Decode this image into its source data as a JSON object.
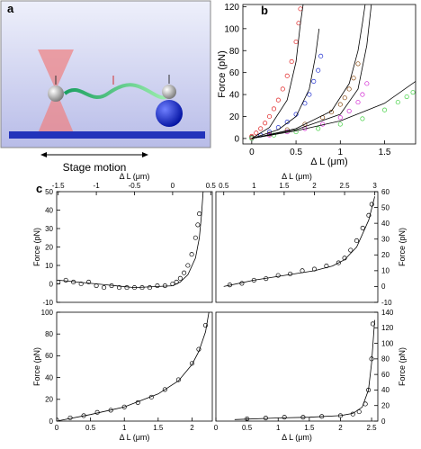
{
  "diagram": {
    "label": "a",
    "caption": "Stage motion"
  },
  "chart_data": [
    {
      "type": "scatter",
      "panel_label": "b",
      "x_label": "Δ L (μm)",
      "y_label": "Force (pN)",
      "x_axis": "bottom",
      "y_axis": "left",
      "xlim": [
        -0.1,
        1.85
      ],
      "ylim": [
        -5,
        122
      ],
      "xticks": [
        0,
        0.5,
        1,
        1.5
      ],
      "yticks": [
        0,
        20,
        40,
        60,
        80,
        100,
        120
      ],
      "series": [
        {
          "color": "#e02020",
          "x": [
            0,
            0.05,
            0.1,
            0.15,
            0.2,
            0.25,
            0.3,
            0.35,
            0.4,
            0.45,
            0.5,
            0.53,
            0.55
          ],
          "values": [
            2,
            5,
            9,
            14,
            20,
            27,
            35,
            45,
            57,
            70,
            88,
            105,
            118
          ]
        },
        {
          "color": "#2030d0",
          "x": [
            0,
            0.1,
            0.2,
            0.3,
            0.4,
            0.5,
            0.6,
            0.65,
            0.7,
            0.75,
            0.78
          ],
          "values": [
            1,
            3,
            6,
            10,
            15,
            22,
            32,
            40,
            52,
            62,
            75
          ]
        },
        {
          "color": "#8a4a10",
          "x": [
            0,
            0.2,
            0.4,
            0.6,
            0.8,
            0.9,
            1.0,
            1.05,
            1.1,
            1.15,
            1.2
          ],
          "values": [
            1,
            4,
            8,
            13,
            19,
            24,
            31,
            37,
            45,
            55,
            68
          ]
        },
        {
          "color": "#d020d0",
          "x": [
            0,
            0.2,
            0.4,
            0.6,
            0.8,
            1.0,
            1.1,
            1.2,
            1.25,
            1.3
          ],
          "values": [
            0,
            3,
            6,
            9,
            13,
            19,
            25,
            33,
            40,
            50
          ]
        },
        {
          "color": "#40d040",
          "x": [
            0,
            0.25,
            0.5,
            0.75,
            1.0,
            1.25,
            1.5,
            1.65,
            1.75,
            1.82
          ],
          "values": [
            0,
            3,
            6,
            9,
            13,
            18,
            26,
            33,
            38,
            42
          ]
        }
      ],
      "fits": [
        {
          "color": "#000000",
          "x": [
            0,
            0.2,
            0.4,
            0.5,
            0.55,
            0.58
          ],
          "values": [
            0,
            10,
            35,
            70,
            105,
            122
          ]
        },
        {
          "color": "#000000",
          "x": [
            0,
            0.3,
            0.5,
            0.65,
            0.72,
            0.76
          ],
          "values": [
            0,
            8,
            20,
            45,
            75,
            100
          ]
        },
        {
          "color": "#000000",
          "x": [
            0,
            0.5,
            0.9,
            1.1,
            1.2,
            1.25,
            1.28
          ],
          "values": [
            0,
            9,
            25,
            50,
            80,
            105,
            122
          ]
        },
        {
          "color": "#000000",
          "x": [
            0,
            0.5,
            1.0,
            1.2,
            1.3,
            1.35
          ],
          "values": [
            0,
            8,
            22,
            45,
            85,
            122
          ]
        },
        {
          "color": "#000000",
          "x": [
            0,
            0.5,
            1.0,
            1.5,
            1.85
          ],
          "values": [
            0,
            7,
            16,
            32,
            52
          ]
        }
      ]
    },
    {
      "type": "scatter",
      "panel_label": "c",
      "x_label": "Δ L (μm)",
      "y_label": "Force (pN)",
      "x_axis": "top",
      "y_axis": "left",
      "xlim": [
        -1.52,
        0.52
      ],
      "ylim": [
        -10,
        50
      ],
      "xticks": [
        -1.5,
        -1,
        -0.5,
        0,
        0.5
      ],
      "yticks": [
        -10,
        0,
        10,
        20,
        30,
        40,
        50
      ],
      "series": [
        {
          "color": "#000000",
          "x": [
            -1.5,
            -1.4,
            -1.3,
            -1.2,
            -1.1,
            -1.0,
            -0.9,
            -0.8,
            -0.7,
            -0.6,
            -0.5,
            -0.4,
            -0.3,
            -0.2,
            -0.1,
            0,
            0.05,
            0.1,
            0.15,
            0.2,
            0.25,
            0.3,
            0.33,
            0.35
          ],
          "values": [
            1,
            2,
            1,
            0,
            1,
            -1,
            -2,
            -1,
            -2,
            -2,
            -2,
            -2,
            -2,
            -1,
            -1,
            0,
            1,
            3,
            6,
            10,
            16,
            25,
            32,
            38
          ]
        }
      ],
      "fits": [
        {
          "color": "#000000",
          "x": [
            -1.5,
            -1,
            -0.5,
            0,
            0.1,
            0.2,
            0.3,
            0.35,
            0.38,
            0.4
          ],
          "values": [
            2,
            0,
            -2,
            -1,
            1,
            5,
            14,
            25,
            38,
            50
          ]
        }
      ]
    },
    {
      "type": "scatter",
      "x_label": "Δ L (μm)",
      "y_label": "Force (pN)",
      "x_axis": "top",
      "y_axis": "right",
      "xlim": [
        0.37,
        3.05
      ],
      "ylim": [
        -10,
        60
      ],
      "xticks": [
        0.5,
        1,
        1.5,
        2,
        2.5,
        3
      ],
      "yticks": [
        -10,
        0,
        10,
        20,
        30,
        40,
        50,
        60
      ],
      "series": [
        {
          "color": "#000000",
          "x": [
            0.6,
            0.8,
            1.0,
            1.2,
            1.4,
            1.6,
            1.8,
            2.0,
            2.2,
            2.4,
            2.5,
            2.6,
            2.7,
            2.8,
            2.9,
            2.95
          ],
          "values": [
            1,
            2,
            4,
            5,
            7,
            8,
            10,
            11,
            13,
            15,
            18,
            23,
            29,
            37,
            45,
            52
          ]
        }
      ],
      "fits": [
        {
          "color": "#000000",
          "x": [
            0.5,
            1,
            1.5,
            2,
            2.3,
            2.5,
            2.7,
            2.9,
            3.0
          ],
          "values": [
            0,
            4,
            7,
            10,
            13,
            17,
            25,
            42,
            57
          ]
        }
      ]
    },
    {
      "type": "scatter",
      "x_label": "Δ L (μm)",
      "y_label": "Force (pN)",
      "x_axis": "bottom",
      "y_axis": "left",
      "xlim": [
        0,
        2.3
      ],
      "ylim": [
        0,
        100
      ],
      "xticks": [
        0,
        0.5,
        1,
        1.5,
        2
      ],
      "yticks": [
        0,
        20,
        40,
        60,
        80,
        100
      ],
      "series": [
        {
          "color": "#000000",
          "x": [
            0,
            0.2,
            0.4,
            0.6,
            0.8,
            1.0,
            1.2,
            1.4,
            1.6,
            1.8,
            2.0,
            2.1,
            2.2
          ],
          "values": [
            1,
            3,
            5,
            8,
            10,
            13,
            17,
            22,
            29,
            38,
            53,
            66,
            88
          ]
        }
      ],
      "fits": [
        {
          "color": "#000000",
          "x": [
            0,
            0.5,
            1.0,
            1.5,
            1.8,
            2.0,
            2.1,
            2.2,
            2.25
          ],
          "values": [
            0,
            6,
            13,
            25,
            37,
            52,
            64,
            82,
            100
          ]
        }
      ]
    },
    {
      "type": "scatter",
      "x_label": "Δ L (μm)",
      "y_label": "Force (pN)",
      "x_axis": "bottom",
      "y_axis": "right",
      "xlim": [
        0,
        2.6
      ],
      "ylim": [
        0,
        140
      ],
      "xticks": [
        0,
        0.5,
        1,
        1.5,
        2,
        2.5
      ],
      "yticks": [
        0,
        20,
        40,
        60,
        80,
        100,
        120,
        140
      ],
      "series": [
        {
          "color": "#000000",
          "x": [
            0.5,
            0.8,
            1.1,
            1.4,
            1.7,
            2.0,
            2.2,
            2.3,
            2.4,
            2.45,
            2.5,
            2.52
          ],
          "values": [
            3,
            4,
            5,
            5,
            6,
            7,
            9,
            12,
            22,
            40,
            80,
            125
          ]
        }
      ],
      "fits": [
        {
          "color": "#000000",
          "x": [
            0.3,
            1,
            1.5,
            2,
            2.2,
            2.35,
            2.45,
            2.5,
            2.55
          ],
          "values": [
            2,
            4,
            5,
            7,
            10,
            18,
            40,
            75,
            130
          ]
        }
      ]
    }
  ]
}
